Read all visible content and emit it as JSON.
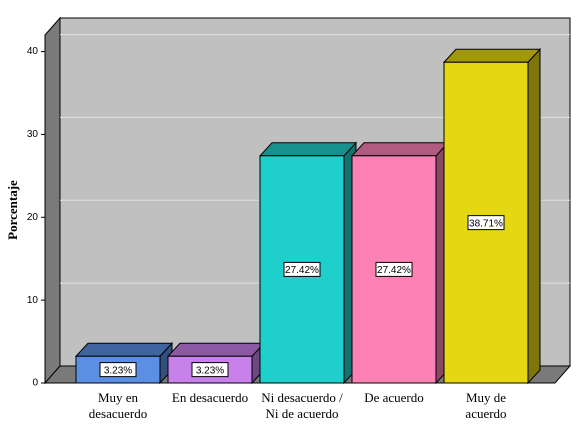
{
  "chart_data": {
    "type": "bar3d",
    "y_label": "Porcentaje",
    "categories": [
      "Muy en\ndesacuerdo",
      "En desacuerdo",
      "Ni desacuerdo /\nNi de acuerdo",
      "De acuerdo",
      "Muy de\nacuerdo"
    ],
    "values": [
      3.23,
      3.23,
      27.42,
      27.42,
      38.71
    ],
    "value_labels": [
      "3.23%",
      "3.23%",
      "27.42%",
      "27.42%",
      "38.71%"
    ],
    "colors": [
      "#5b8fe3",
      "#c880ea",
      "#1fcfcb",
      "#fc82b6",
      "#e6d713"
    ],
    "ylim": [
      0,
      42
    ],
    "yticks": [
      0,
      10,
      20,
      30,
      40
    ],
    "grid": true
  }
}
